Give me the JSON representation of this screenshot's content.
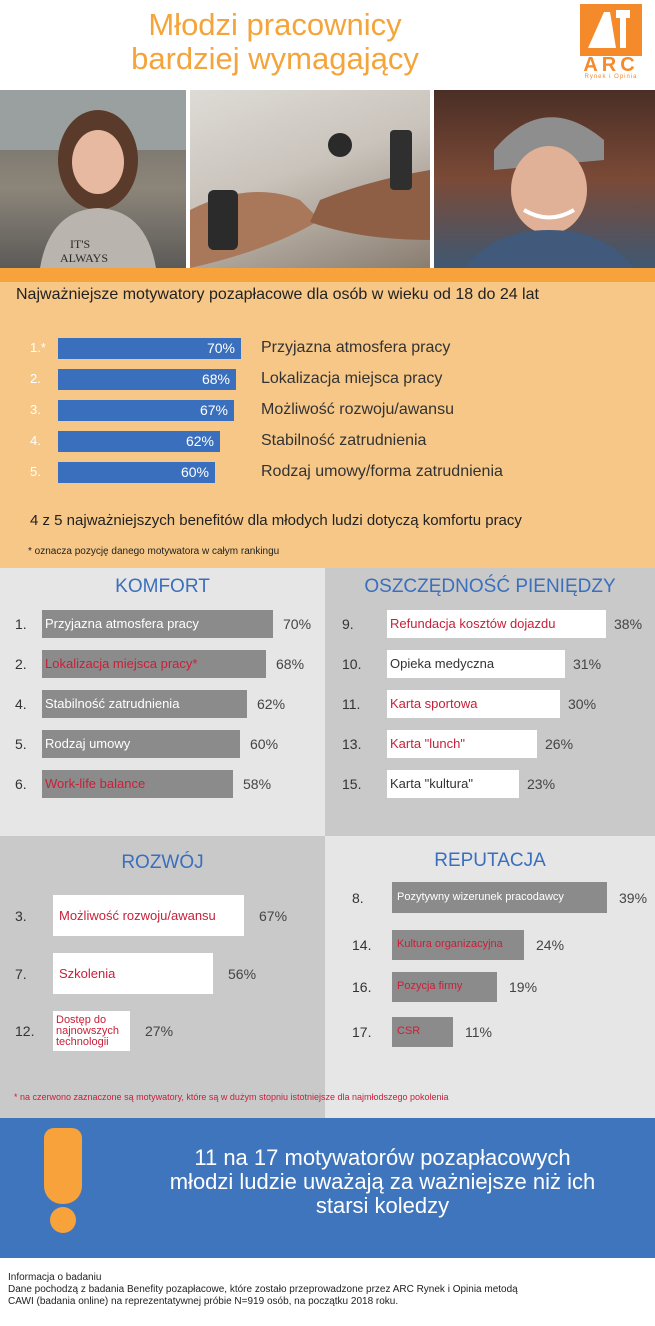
{
  "header": {
    "title_line1": "Młodzi pracownicy",
    "title_line2": "bardziej wymagający",
    "logo_name": "ARC",
    "logo_sub": "Rynek i Opinia"
  },
  "colors": {
    "orange": "#f7a23b",
    "blue": "#3f75bd",
    "red": "#c8203a",
    "gray": "#8b8b8b"
  },
  "top_section": {
    "subtitle": "Najważniejsze motywatory pozapłacowe dla osób w wieku od 18 do 24 lat",
    "benefit_note": "4 z 5 najważniejszych benefitów dla młodych ludzi dotyczą komfortu pracy",
    "rank_note": "* oznacza pozycję danego motywatora w całym rankingu"
  },
  "chart_data": [
    {
      "type": "bar",
      "title": "Najważniejsze motywatory pozapłacowe dla osób w wieku od 18 do 24 lat",
      "ranks": [
        "1.*",
        "2.",
        "3.",
        "4.",
        "5."
      ],
      "categories": [
        "Przyjazna atmosfera pracy",
        "Lokalizacja miejsca pracy",
        "Możliwość rozwoju/awansu",
        "Stabilność zatrudnienia",
        "Rodzaj umowy/forma zatrudnienia"
      ],
      "values": [
        70,
        68,
        67,
        62,
        60
      ],
      "labels": [
        "70%",
        "68%",
        "67%",
        "62%",
        "60%"
      ]
    },
    {
      "type": "bar",
      "title": "KOMFORT",
      "ranks": [
        "1.",
        "2.",
        "4.",
        "5.",
        "6."
      ],
      "categories": [
        "Przyjazna atmosfera pracy",
        "Lokalizacja miejsca pracy*",
        "Stabilność zatrudnienia",
        "Rodzaj umowy",
        "Work-life balance"
      ],
      "values": [
        70,
        68,
        62,
        60,
        58
      ],
      "labels": [
        "70%",
        "68%",
        "62%",
        "60%",
        "58%"
      ],
      "highlighted": [
        false,
        true,
        false,
        false,
        true
      ]
    },
    {
      "type": "bar",
      "title": "OSZCZĘDNOŚĆ PIENIĘDZY",
      "ranks": [
        "9.",
        "10.",
        "11.",
        "13.",
        "15."
      ],
      "categories": [
        "Refundacja kosztów dojazdu",
        "Opieka medyczna",
        "Karta sportowa",
        "Karta \"lunch\"",
        "Karta \"kultura\""
      ],
      "values": [
        38,
        31,
        30,
        26,
        23
      ],
      "labels": [
        "38%",
        "31%",
        "30%",
        "26%",
        "23%"
      ],
      "highlighted": [
        true,
        false,
        true,
        true,
        false
      ]
    },
    {
      "type": "bar",
      "title": "ROZWÓJ",
      "ranks": [
        "3.",
        "7.",
        "12."
      ],
      "categories": [
        "Możliwość rozwoju/awansu",
        "Szkolenia",
        "Dostęp do najnowszych technologii"
      ],
      "values": [
        67,
        56,
        27
      ],
      "labels": [
        "67%",
        "56%",
        "27%"
      ],
      "highlighted": [
        true,
        true,
        true
      ]
    },
    {
      "type": "bar",
      "title": "REPUTACJA",
      "ranks": [
        "8.",
        "14.",
        "16.",
        "17."
      ],
      "categories": [
        "Pozytywny wizerunek pracodawcy",
        "Kultura organizacyjna",
        "Pozycja firmy",
        "CSR"
      ],
      "values": [
        39,
        24,
        19,
        11
      ],
      "labels": [
        "39%",
        "24%",
        "19%",
        "11%"
      ],
      "highlighted": [
        false,
        true,
        true,
        true
      ]
    }
  ],
  "red_note": "* na czerwono zaznaczone są motywatory, które są w dużym stopniu istotniejsze dla najmłodszego pokolenia",
  "banner": {
    "line1": "11 na 17 motywatorów pozapłacowych",
    "line2": "młodzi ludzie uważają za ważniejsze niż ich",
    "line3": "starsi koledzy"
  },
  "footer": {
    "title": "Informacja o badaniu",
    "line1": "Dane pochodzą z badania  Benefity pozapłacowe, które zostało przeprowadzone przez ARC Rynek i Opinia metodą",
    "line2": "CAWI (badania online) na reprezentatywnej próbie N=919 osób, na początku 2018 roku."
  }
}
